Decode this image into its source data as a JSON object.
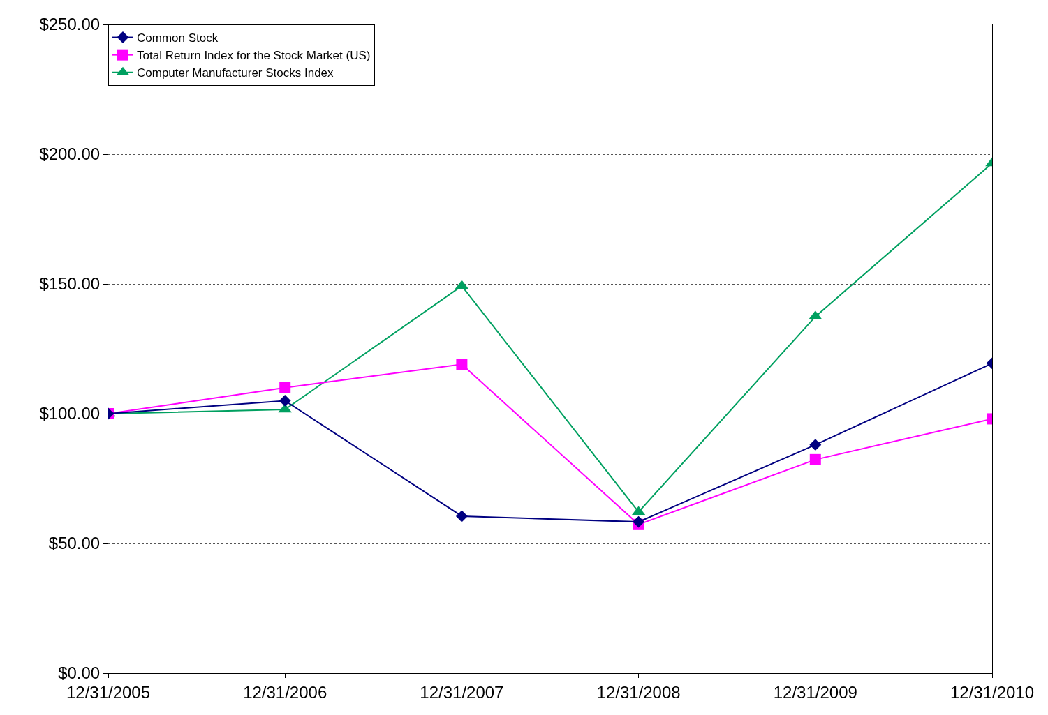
{
  "chart_data": {
    "type": "line",
    "categories": [
      "12/31/2005",
      "12/31/2006",
      "12/31/2007",
      "12/31/2008",
      "12/31/2009",
      "12/31/2010"
    ],
    "series": [
      {
        "name": "Common Stock",
        "color": "#000080",
        "marker": "diamond",
        "values": [
          100,
          105,
          60.5,
          58.3,
          88,
          119.4
        ]
      },
      {
        "name": "Total Return Index for the Stock Market (US)",
        "color": "#ff00ff",
        "marker": "square",
        "values": [
          100,
          110,
          119,
          57.3,
          82.3,
          98
        ]
      },
      {
        "name": "Computer Manufacturer Stocks Index",
        "color": "#00a060",
        "marker": "triangle",
        "values": [
          100,
          101.6,
          149.2,
          62.1,
          137.4,
          196.5
        ]
      }
    ],
    "ylim": [
      0,
      250
    ],
    "yticks": [
      {
        "value": 0,
        "label": "$0.00"
      },
      {
        "value": 50,
        "label": "$50.00"
      },
      {
        "value": 100,
        "label": "$100.00"
      },
      {
        "value": 150,
        "label": "$150.00"
      },
      {
        "value": 200,
        "label": "$200.00"
      },
      {
        "value": 250,
        "label": "$250.00"
      }
    ],
    "grid": "y",
    "legend": "top left",
    "line_style": "solid"
  }
}
